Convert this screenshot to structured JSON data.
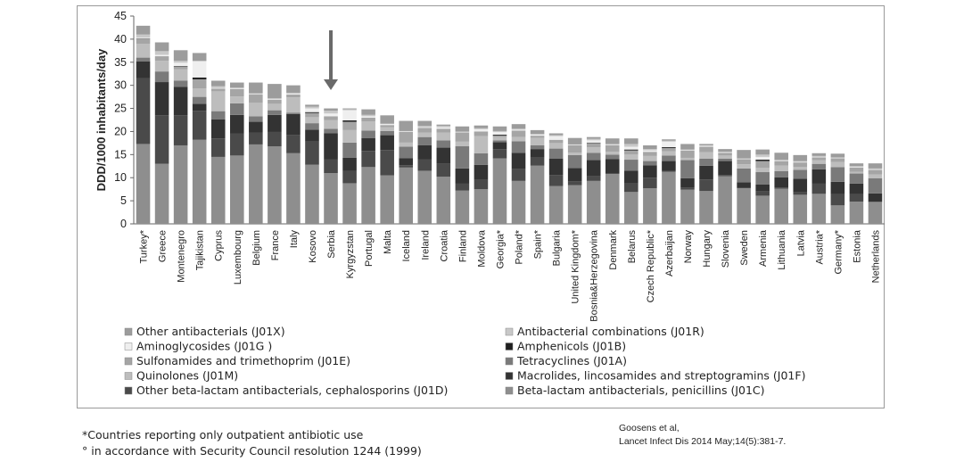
{
  "chart_data": {
    "type": "bar",
    "stacked": true,
    "ylabel": "DDD/1000 inhabitants/day",
    "ylim": [
      0,
      45
    ],
    "yticks": [
      0,
      5,
      10,
      15,
      20,
      25,
      30,
      35,
      40,
      45
    ],
    "grid": false,
    "legend_position": "bottom",
    "categories": [
      "Turkey*",
      "Greece",
      "Montenegro",
      "Tajikistan",
      "Cyprus",
      "Luxembourg",
      "Belgium",
      "France",
      "Italy",
      "Kosovo",
      "Serbia",
      "Kyrgyzstan",
      "Portugal",
      "Malta",
      "Iceland",
      "Ireland",
      "Croatia",
      "Finland",
      "Moldova",
      "Georgia*",
      "Poland*",
      "Spain*",
      "Bulgaria",
      "United Kingdom*",
      "Bosnia&Herzegovina",
      "Denmark",
      "Belarus",
      "Czech Republic*",
      "Azerbaijan",
      "Norway",
      "Hungary",
      "Slovenia",
      "Sweden",
      "Armenia",
      "Lithuania",
      "Latvia",
      "Austria*",
      "Germany*",
      "Estonia",
      "Netherlands"
    ],
    "series": [
      {
        "name": "Beta-lactam antibacterials, penicillins (J01C)",
        "color": "#8e8e8e",
        "values": [
          17.3,
          13.0,
          17.0,
          18.2,
          14.5,
          14.8,
          17.2,
          16.8,
          15.3,
          12.8,
          11.0,
          8.8,
          12.3,
          10.5,
          12.2,
          11.5,
          10.2,
          7.2,
          7.5,
          14.2,
          9.3,
          12.6,
          8.2,
          8.4,
          9.3,
          10.8,
          6.9,
          7.7,
          11.3,
          7.4,
          7.1,
          10.3,
          7.7,
          6.1,
          7.6,
          6.3,
          6.5,
          4.0,
          4.8,
          4.7
        ]
      },
      {
        "name": "Other beta-lactam antibacterials, cephalosporins (J01D)",
        "color": "#4a4a4a",
        "values": [
          14.2,
          10.5,
          6.5,
          6.3,
          4.0,
          4.8,
          2.6,
          3.1,
          4.0,
          5.0,
          3.0,
          2.7,
          3.5,
          5.5,
          0.5,
          2.5,
          2.8,
          1.5,
          2.0,
          2.0,
          2.6,
          1.8,
          2.4,
          0.8,
          1.0,
          0.2,
          1.9,
          2.3,
          0.2,
          0.5,
          2.5,
          0.3,
          0.1,
          0.9,
          0.3,
          0.5,
          2.2,
          2.4,
          1.6,
          0.1
        ]
      },
      {
        "name": "Macrolides, lincosamides and streptogramins (J01F)",
        "color": "#333333",
        "values": [
          3.7,
          7.2,
          6.2,
          1.5,
          4.1,
          4.0,
          2.3,
          3.7,
          4.5,
          2.6,
          5.6,
          2.8,
          2.8,
          3.2,
          1.5,
          3.0,
          3.5,
          3.3,
          3.3,
          1.5,
          3.5,
          1.8,
          3.5,
          2.9,
          3.5,
          3.0,
          2.7,
          2.7,
          2.1,
          2.0,
          3.0,
          3.0,
          1.2,
          1.5,
          2.2,
          3.0,
          3.1,
          2.7,
          2.3,
          1.8
        ]
      },
      {
        "name": "Tetracyclines (J01A)",
        "color": "#7a7a7a",
        "values": [
          0.8,
          2.3,
          1.3,
          1.5,
          1.8,
          2.5,
          1.2,
          1.0,
          0.3,
          1.4,
          1.0,
          3.3,
          1.6,
          0.9,
          2.5,
          1.8,
          1.6,
          4.8,
          2.5,
          0.4,
          2.5,
          0.8,
          2.2,
          2.8,
          1.6,
          1.0,
          2.4,
          0.9,
          1.2,
          3.9,
          1.5,
          0.5,
          3.0,
          2.7,
          1.3,
          1.9,
          1.2,
          3.2,
          2.2,
          3.3
        ]
      },
      {
        "name": "Quinolones (J01M)",
        "color": "#bdbdbd",
        "values": [
          3.0,
          2.3,
          2.5,
          1.8,
          4.3,
          1.5,
          2.9,
          1.4,
          3.3,
          1.3,
          1.9,
          2.7,
          2.0,
          0.8,
          0.9,
          1.0,
          1.7,
          1.0,
          3.7,
          0.7,
          0.9,
          1.6,
          1.2,
          0.5,
          1.2,
          0.6,
          1.1,
          1.1,
          0.9,
          0.5,
          1.4,
          0.7,
          0.9,
          0.9,
          1.2,
          0.6,
          0.8,
          1.1,
          0.4,
          0.8
        ]
      },
      {
        "name": "Sulfonamides and trimethoprim (J01E)",
        "color": "#a5a5a5",
        "values": [
          1.0,
          1.0,
          0.6,
          2.0,
          0.6,
          1.6,
          1.8,
          0.9,
          0.6,
          0.9,
          0.8,
          1.8,
          0.8,
          0.5,
          2.3,
          1.0,
          0.8,
          2.0,
          1.0,
          0.3,
          1.4,
          0.5,
          0.7,
          1.6,
          0.9,
          1.4,
          0.9,
          0.9,
          0.7,
          1.6,
          1.2,
          0.6,
          1.1,
          1.5,
          1.0,
          1.0,
          0.6,
          0.8,
          0.9,
          1.0
        ]
      },
      {
        "name": "Amphenicols (J01B)",
        "color": "#1f1f1f",
        "values": [
          0.1,
          0.0,
          0.1,
          0.4,
          0.0,
          0.0,
          0.0,
          0.0,
          0.0,
          0.2,
          0.0,
          0.3,
          0.0,
          0.0,
          0.0,
          0.0,
          0.0,
          0.0,
          0.0,
          0.2,
          0.0,
          0.0,
          0.0,
          0.0,
          0.1,
          0.0,
          0.2,
          0.0,
          0.2,
          0.0,
          0.0,
          0.0,
          0.0,
          0.3,
          0.0,
          0.0,
          0.0,
          0.0,
          0.0,
          0.0
        ]
      },
      {
        "name": "Aminoglycosides (J01G )",
        "color": "#efefef",
        "values": [
          0.2,
          0.3,
          0.7,
          3.5,
          0.1,
          0.1,
          0.1,
          0.1,
          0.2,
          0.8,
          0.6,
          2.2,
          0.3,
          0.2,
          0.1,
          0.1,
          0.3,
          0.1,
          0.5,
          0.6,
          0.2,
          0.2,
          0.8,
          0.1,
          0.5,
          0.1,
          0.6,
          0.3,
          1.2,
          0.1,
          0.2,
          0.1,
          0.1,
          0.6,
          0.1,
          0.1,
          0.1,
          0.1,
          0.1,
          0.1
        ]
      },
      {
        "name": "Antibacterial combinations (J01R)",
        "color": "#c8c8c8",
        "values": [
          0.7,
          0.8,
          0.4,
          0.1,
          0.4,
          0.2,
          0.2,
          0.2,
          0.2,
          0.4,
          0.6,
          0.2,
          0.3,
          0.1,
          0.1,
          0.3,
          0.3,
          0.1,
          0.2,
          0.2,
          0.2,
          0.2,
          0.2,
          0.1,
          0.3,
          0.2,
          0.6,
          0.3,
          0.2,
          0.1,
          0.1,
          0.1,
          0.1,
          0.5,
          0.2,
          0.2,
          0.2,
          0.1,
          0.2,
          0.2
        ]
      },
      {
        "name": "Other antibacterials (J01X)",
        "color": "#9c9c9c",
        "values": [
          1.9,
          1.9,
          2.3,
          1.7,
          1.2,
          1.1,
          2.3,
          3.1,
          1.6,
          0.4,
          0.5,
          0.2,
          1.2,
          1.8,
          2.2,
          1.1,
          0.3,
          1.1,
          0.6,
          1.0,
          1.0,
          0.8,
          0.4,
          1.4,
          0.4,
          1.2,
          1.2,
          0.8,
          0.3,
          1.2,
          0.3,
          0.6,
          1.8,
          1.1,
          1.5,
          1.3,
          0.6,
          0.8,
          0.6,
          1.1
        ]
      }
    ],
    "annotation": {
      "type": "arrow",
      "target_category": "Serbia"
    }
  },
  "legend_order": [
    "Other antibacterials (J01X)",
    "Antibacterial combinations (J01R)",
    "Aminoglycosides (J01G )",
    "Amphenicols (J01B)",
    "Sulfonamides and trimethoprim (J01E)",
    "Tetracyclines (J01A)",
    "Quinolones (J01M)",
    "Macrolides, lincosamides and streptogramins (J01F)",
    "Other beta-lactam antibacterials, cephalosporins (J01D)",
    "Beta-lactam antibacterials, penicillins (J01C)"
  ],
  "footnotes": {
    "line1": "*Countries reporting only outpatient antibiotic use",
    "line2": "° in accordance with Security Council resolution 1244 (1999)"
  },
  "citation": {
    "line1": "Goosens et al,",
    "line2": "Lancet Infect Dis 2014 May;14(5):381-7."
  }
}
